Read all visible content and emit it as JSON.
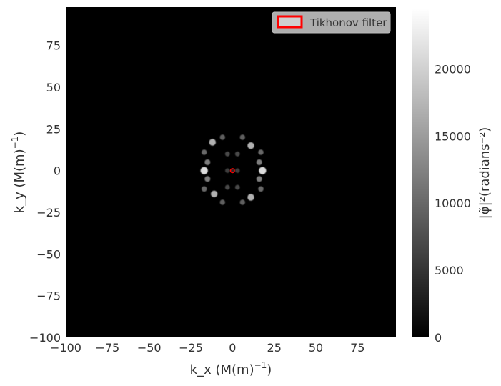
{
  "chart_data": {
    "type": "heatmap",
    "title": "",
    "xlabel": "k_x (M(m)",
    "xlabel_sup": "−1",
    "xlabel_tail": ")",
    "ylabel": "k_y (M(m)",
    "ylabel_sup": "−1",
    "ylabel_tail": ")",
    "xlim": [
      -100,
      98
    ],
    "ylim": [
      -100,
      98
    ],
    "xticks": [
      -100,
      -75,
      -50,
      -25,
      0,
      25,
      50,
      75
    ],
    "xtick_labels": [
      "−100",
      "−75",
      "−50",
      "−25",
      "0",
      "25",
      "50",
      "75"
    ],
    "yticks": [
      -100,
      -75,
      -50,
      -25,
      0,
      25,
      50,
      75
    ],
    "ytick_labels": [
      "−100",
      "−75",
      "−50",
      "−25",
      "0",
      "25",
      "50",
      "75"
    ],
    "colormap": "gray",
    "colorbar": {
      "label": "|φ̃|²(radians⁻²)",
      "range": [
        0,
        24500
      ],
      "ticks": [
        0,
        5000,
        10000,
        15000,
        20000
      ],
      "tick_labels": [
        "0",
        "5000",
        "10000",
        "15000",
        "20000"
      ]
    },
    "blobs": [
      {
        "kx": -17,
        "ky": 0,
        "intensity": 21000
      },
      {
        "kx": -15,
        "ky": 5,
        "intensity": 12000
      },
      {
        "kx": -15,
        "ky": -5,
        "intensity": 12000
      },
      {
        "kx": 18,
        "ky": 0,
        "intensity": 21000
      },
      {
        "kx": 16,
        "ky": 5,
        "intensity": 12000
      },
      {
        "kx": 16,
        "ky": -5,
        "intensity": 12000
      },
      {
        "kx": -17,
        "ky": 11,
        "intensity": 10000
      },
      {
        "kx": -17,
        "ky": -11,
        "intensity": 10000
      },
      {
        "kx": 17,
        "ky": 11,
        "intensity": 10000
      },
      {
        "kx": 17,
        "ky": -11,
        "intensity": 10000
      },
      {
        "kx": -12,
        "ky": 17,
        "intensity": 17000
      },
      {
        "kx": -11,
        "ky": -14,
        "intensity": 17000
      },
      {
        "kx": 11,
        "ky": 15,
        "intensity": 17000
      },
      {
        "kx": 11,
        "ky": -16,
        "intensity": 17000
      },
      {
        "kx": -6,
        "ky": 20,
        "intensity": 9000
      },
      {
        "kx": 6,
        "ky": 20,
        "intensity": 9000
      },
      {
        "kx": -6,
        "ky": -19,
        "intensity": 9000
      },
      {
        "kx": 6,
        "ky": -19,
        "intensity": 9000
      },
      {
        "kx": -3,
        "ky": 10,
        "intensity": 7000
      },
      {
        "kx": -3,
        "ky": -10,
        "intensity": 7000
      },
      {
        "kx": 3,
        "ky": 10,
        "intensity": 7000
      },
      {
        "kx": 3,
        "ky": -10,
        "intensity": 7000
      },
      {
        "kx": -3,
        "ky": 0,
        "intensity": 6000
      },
      {
        "kx": 3,
        "ky": 0,
        "intensity": 6000
      },
      {
        "kx": 0,
        "ky": 0,
        "intensity": 4000
      }
    ],
    "tikhonov_filter": {
      "kx": 0,
      "ky": 0,
      "radius": 1.2,
      "color": "#ff0000"
    },
    "legend": {
      "placement": "top-right",
      "entries": [
        {
          "label": "Tikhonov filter",
          "edge_color": "#ff0000"
        }
      ]
    },
    "grid": false
  }
}
